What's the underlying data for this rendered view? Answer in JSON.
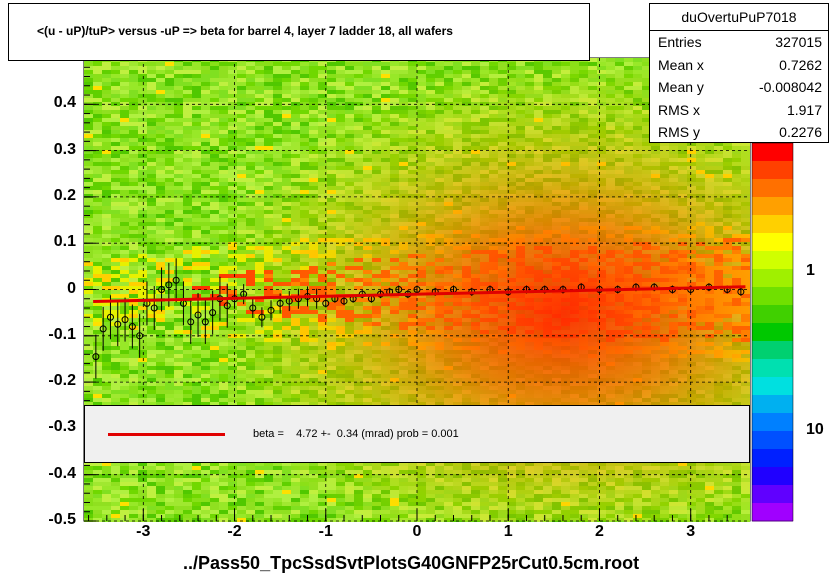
{
  "title": "<(u - uP)/tuP> versus  -uP => beta for barrel 4, layer 7 ladder 18, all wafers",
  "filename": "../Pass50_TpcSsdSvtPlotsG40GNFP25rCut0.5cm.root",
  "stats": {
    "name": "duOvertuPuP7018",
    "rows": [
      {
        "label": "Entries",
        "value": "327015"
      },
      {
        "label": "Mean x",
        "value": "0.7262"
      },
      {
        "label": "Mean y",
        "value": "-0.008042"
      },
      {
        "label": "RMS x",
        "value": "1.917"
      },
      {
        "label": "RMS y",
        "value": "0.2276"
      }
    ]
  },
  "legend": {
    "text": "beta =    4.72 +-  0.34 (mrad) prob = 0.001"
  },
  "chart_data": {
    "type": "heatmap",
    "xlim": [
      -3.65,
      3.65
    ],
    "ylim": [
      -0.5,
      0.5
    ],
    "xticks": [
      "-3",
      "-2",
      "-1",
      "0",
      "1",
      "2",
      "3"
    ],
    "xtick_values": [
      -3,
      -2,
      -1,
      0,
      1,
      2,
      3
    ],
    "yticks": [
      "-0.5",
      "-0.4",
      "-0.3",
      "-0.2",
      "-0.1",
      "0",
      "0.1",
      "0.2",
      "0.3",
      "0.4"
    ],
    "ytick_values": [
      -0.5,
      -0.4,
      -0.3,
      -0.2,
      -0.1,
      0,
      0.1,
      0.2,
      0.3,
      0.4
    ],
    "zticks": [
      "1",
      "10"
    ],
    "color_scale": "log",
    "grid": true,
    "fit": {
      "x": [
        -3.55,
        3.6
      ],
      "y": [
        -0.026,
        0.006
      ],
      "color": "#e00000"
    },
    "profile_points": [
      {
        "x": -3.52,
        "y": -0.145
      },
      {
        "x": -3.44,
        "y": -0.085
      },
      {
        "x": -3.36,
        "y": -0.06
      },
      {
        "x": -3.28,
        "y": -0.075
      },
      {
        "x": -3.2,
        "y": -0.065
      },
      {
        "x": -3.12,
        "y": -0.08
      },
      {
        "x": -3.04,
        "y": -0.1
      },
      {
        "x": -2.96,
        "y": -0.03
      },
      {
        "x": -2.88,
        "y": -0.04
      },
      {
        "x": -2.8,
        "y": 0.0
      },
      {
        "x": -2.72,
        "y": 0.01
      },
      {
        "x": -2.64,
        "y": 0.02
      },
      {
        "x": -2.56,
        "y": -0.03
      },
      {
        "x": -2.48,
        "y": -0.07
      },
      {
        "x": -2.4,
        "y": -0.055
      },
      {
        "x": -2.32,
        "y": -0.07
      },
      {
        "x": -2.24,
        "y": -0.05
      },
      {
        "x": -2.16,
        "y": -0.02
      },
      {
        "x": -2.08,
        "y": -0.035
      },
      {
        "x": -2.0,
        "y": -0.02
      },
      {
        "x": -1.9,
        "y": -0.01
      },
      {
        "x": -1.8,
        "y": -0.04
      },
      {
        "x": -1.7,
        "y": -0.06
      },
      {
        "x": -1.6,
        "y": -0.045
      },
      {
        "x": -1.5,
        "y": -0.03
      },
      {
        "x": -1.4,
        "y": -0.025
      },
      {
        "x": -1.3,
        "y": -0.02
      },
      {
        "x": -1.2,
        "y": -0.015
      },
      {
        "x": -1.1,
        "y": -0.02
      },
      {
        "x": -1.0,
        "y": -0.03
      },
      {
        "x": -0.9,
        "y": -0.02
      },
      {
        "x": -0.8,
        "y": -0.025
      },
      {
        "x": -0.7,
        "y": -0.02
      },
      {
        "x": -0.6,
        "y": -0.01
      },
      {
        "x": -0.5,
        "y": -0.02
      },
      {
        "x": -0.4,
        "y": -0.01
      },
      {
        "x": -0.3,
        "y": -0.005
      },
      {
        "x": -0.2,
        "y": 0.0
      },
      {
        "x": -0.1,
        "y": -0.01
      },
      {
        "x": 0.0,
        "y": 0.0
      },
      {
        "x": 0.2,
        "y": -0.005
      },
      {
        "x": 0.4,
        "y": 0.0
      },
      {
        "x": 0.6,
        "y": -0.005
      },
      {
        "x": 0.8,
        "y": 0.0
      },
      {
        "x": 1.0,
        "y": -0.005
      },
      {
        "x": 1.2,
        "y": 0.0
      },
      {
        "x": 1.4,
        "y": 0.0
      },
      {
        "x": 1.6,
        "y": 0.0
      },
      {
        "x": 1.8,
        "y": 0.005
      },
      {
        "x": 2.0,
        "y": 0.0
      },
      {
        "x": 2.2,
        "y": 0.0
      },
      {
        "x": 2.4,
        "y": 0.005
      },
      {
        "x": 2.6,
        "y": 0.005
      },
      {
        "x": 2.8,
        "y": 0.0
      },
      {
        "x": 3.0,
        "y": 0.0
      },
      {
        "x": 3.2,
        "y": 0.005
      },
      {
        "x": 3.4,
        "y": 0.0
      },
      {
        "x": 3.55,
        "y": -0.005
      }
    ],
    "palette": [
      "#ff0000",
      "#ff4000",
      "#ff7000",
      "#ffa000",
      "#ffd000",
      "#ffff00",
      "#d0ff00",
      "#a0f000",
      "#70e000",
      "#40d000",
      "#00c800",
      "#00d070",
      "#00e0b0",
      "#00e0e0",
      "#00b0f0",
      "#0080ff",
      "#0050ff",
      "#0020ff",
      "#2000ff",
      "#6000ff",
      "#a000ff"
    ],
    "colors": {
      "fit": "#e00000",
      "background": "#90e020"
    }
  }
}
